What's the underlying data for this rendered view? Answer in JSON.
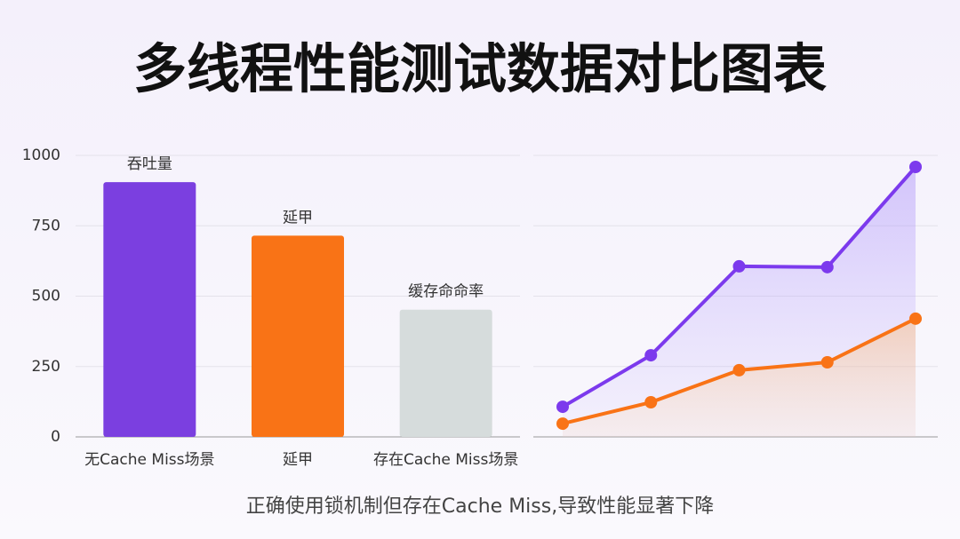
{
  "title": "多线程性能测试数据对比图表",
  "caption": "正确使用锁机制但存在Cache Miss,导致性能显著下降",
  "chart_data": [
    {
      "type": "bar",
      "categories": [
        "无Cache Miss场景",
        "延甲",
        "存在Cache Miss场景"
      ],
      "annotations": [
        "吞吐量",
        "延甲",
        "缓存命命率"
      ],
      "values": [
        905,
        715,
        452
      ],
      "colors": [
        "#7b3fe0",
        "#f97316",
        "#d6dcdc"
      ],
      "ylim": [
        0,
        1000
      ],
      "yticks": [
        0,
        250,
        500,
        750,
        1000
      ],
      "grid": true
    },
    {
      "type": "area-line",
      "categories": [
        null,
        null,
        null,
        null,
        null
      ],
      "series": [
        {
          "color": "#7c3aed",
          "values": [
            107,
            290,
            606,
            603,
            959
          ]
        },
        {
          "color": "#f97316",
          "values": [
            47,
            123,
            237,
            265,
            420
          ]
        }
      ],
      "ylim": [
        0,
        1000
      ],
      "yticks": [
        0,
        250,
        500,
        750,
        1000
      ],
      "grid": true,
      "tick_labels": false
    }
  ]
}
